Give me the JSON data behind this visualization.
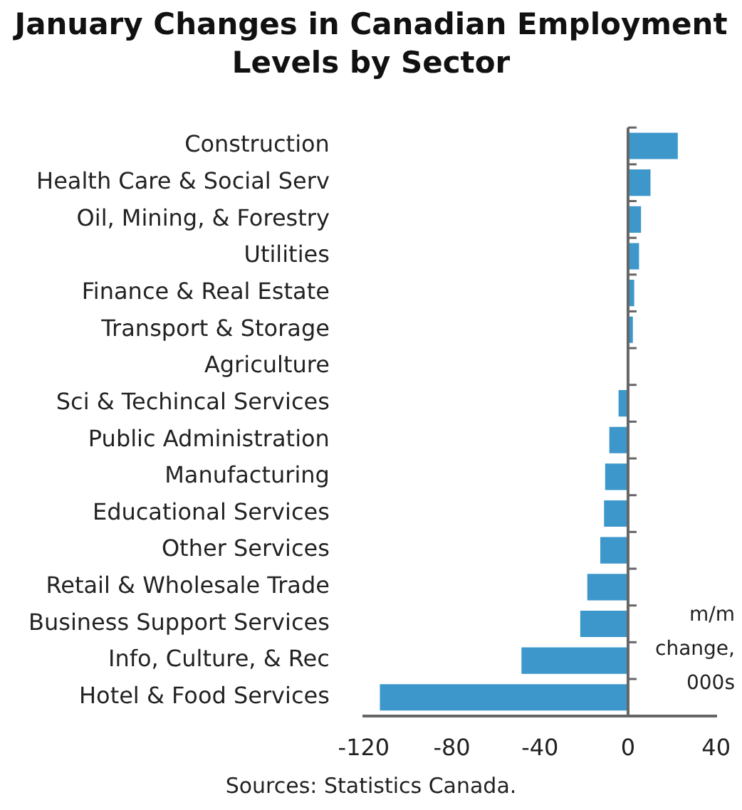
{
  "chart_data": {
    "type": "bar",
    "orientation": "horizontal",
    "title": "January Changes in Canadian Employment Levels by Sector",
    "categories": [
      "Construction",
      "Health Care & Social Serv",
      "Oil, Mining, & Forestry",
      "Utilities",
      "Finance & Real Estate",
      "Transport & Storage",
      "Agriculture",
      "Sci & Techincal Services",
      "Public Administration",
      "Manufacturing",
      "Educational Services",
      "Other Services",
      "Retail & Wholesale Trade",
      "Business Support Services",
      "Info, Culture, & Rec",
      "Hotel & Food Services"
    ],
    "values": [
      22.6,
      10.2,
      5.9,
      5.0,
      2.8,
      2.2,
      0,
      -4.3,
      -8.5,
      -10.4,
      -10.9,
      -12.6,
      -18.5,
      -21.7,
      -48.4,
      -112.7
    ],
    "color": "#3e97cb",
    "xlim": [
      -120,
      40
    ],
    "xticks": [
      -120,
      -80,
      -40,
      0,
      40
    ],
    "grid": false,
    "ref_lines": [
      {
        "axis": "x",
        "value": 0,
        "color": "#666666"
      }
    ],
    "annotations": [
      "m/m change, 000s",
      "Sources: Statistics Canada."
    ]
  }
}
